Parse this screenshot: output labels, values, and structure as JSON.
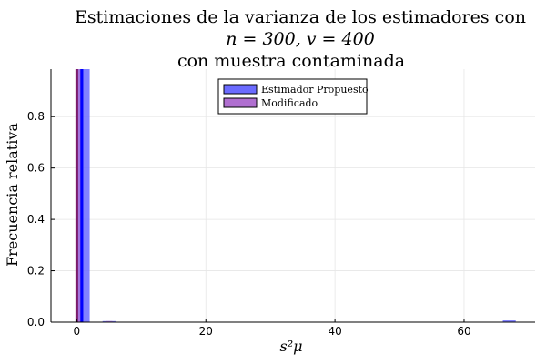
{
  "chart_data": {
    "type": "bar",
    "title_lines": [
      "Estimaciones de la varianza de los estimadores con",
      "n = 300, v = 400",
      "con muestra contaminada"
    ],
    "xlabel": "s²μ",
    "ylabel": "Frecuencia relativa",
    "xlim": [
      -4,
      71
    ],
    "ylim": [
      0,
      0.985
    ],
    "x_ticks": [
      0,
      20,
      40,
      60
    ],
    "y_ticks": [
      0.0,
      0.2,
      0.4,
      0.6,
      0.8
    ],
    "grid": true,
    "legend_position": "top-center",
    "series": [
      {
        "name": "Estimador Propuesto",
        "color": "#6b6bff",
        "bins": [
          {
            "x0": 0,
            "x1": 2,
            "value": 0.99
          },
          {
            "x0": 4,
            "x1": 6,
            "value": 0.003
          },
          {
            "x0": 66,
            "x1": 68,
            "value": 0.007
          }
        ]
      },
      {
        "name": "Modificado",
        "color": "#b06fd0",
        "bins": [
          {
            "x0": 0,
            "x1": 1,
            "value": 1.0
          },
          {
            "x0": 4.5,
            "x1": 5.5,
            "value": 0.002
          }
        ]
      }
    ],
    "overlap_color": "#0000ff",
    "dark_edge_color": "#7a1a6a"
  }
}
